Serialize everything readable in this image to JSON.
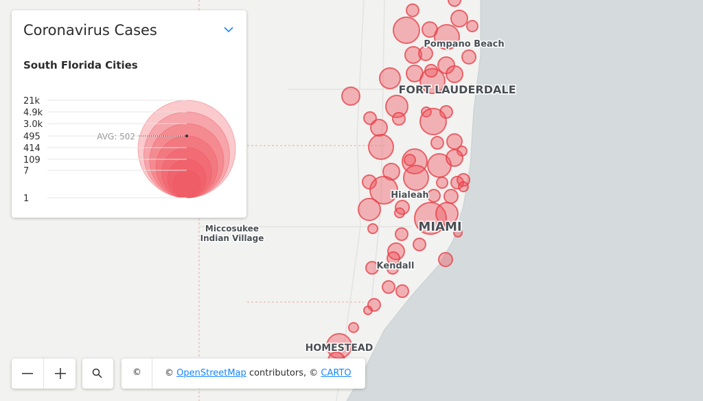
{
  "legend": {
    "title": "Coronavirus Cases",
    "subtitle": "South Florida Cities",
    "labels": [
      "21k",
      "4.9k",
      "3.0k",
      "495",
      "414",
      "109",
      "7",
      "1"
    ],
    "average": "AVG: 502"
  },
  "places": [
    "Pompano Beach",
    "FORT LAUDERDALE",
    "Hialeah",
    "MIAMI",
    "Kendall",
    "HOMESTEAD",
    "Miccosukee",
    "Indian Village"
  ],
  "attribution": {
    "icon": "©",
    "prefix": "©",
    "link1": "OpenStreetMap",
    "middle": "contributors, ©",
    "link2": "CARTO"
  }
}
